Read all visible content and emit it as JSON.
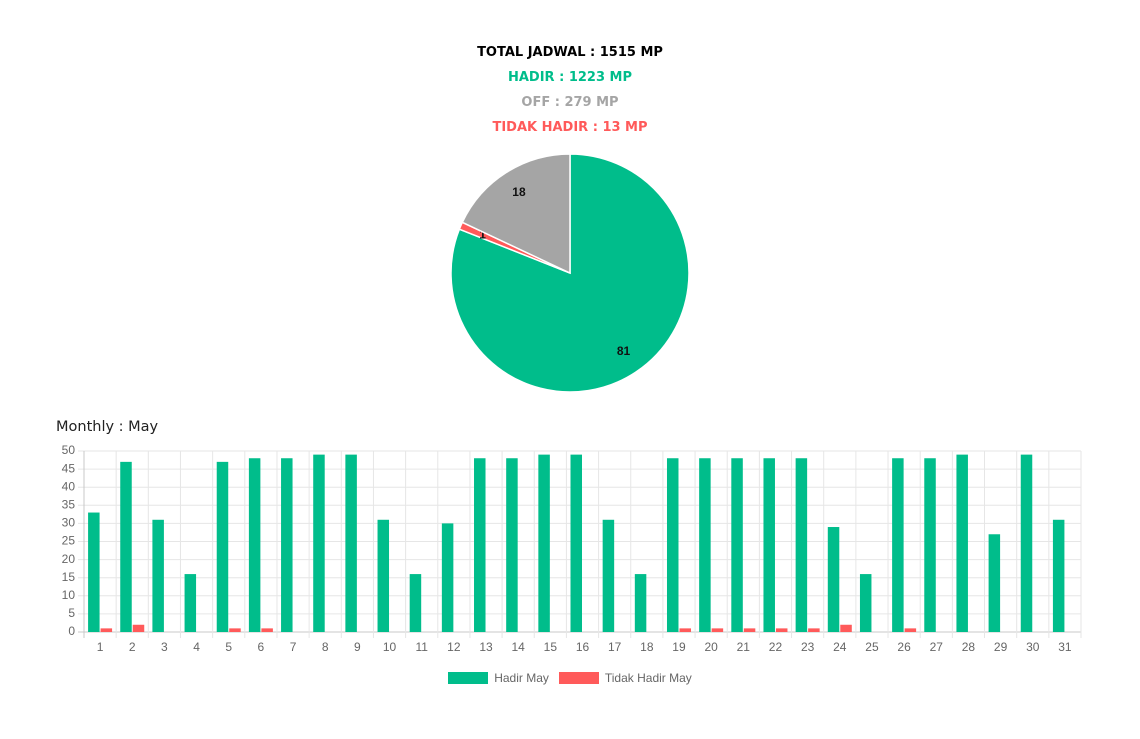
{
  "summary": {
    "total": "TOTAL JADWAL : 1515 MP",
    "hadir": "HADIR : 1223 MP",
    "off": "OFF : 279 MP",
    "tidak_hadir": "TIDAK HADIR : 13 MP"
  },
  "monthly_title": "Monthly : May",
  "colors": {
    "hadir": "#00bd8b",
    "off": "#a5a5a5",
    "tidak_hadir": "#ff5a5a"
  },
  "chart_data": [
    {
      "type": "pie",
      "slices": [
        {
          "label": "81",
          "value": 81,
          "color": "#00bd8b"
        },
        {
          "label": "1",
          "value": 1,
          "color": "#ff5a5a"
        },
        {
          "label": "18",
          "value": 18,
          "color": "#a5a5a5"
        }
      ]
    },
    {
      "type": "bar",
      "categories": [
        "1",
        "2",
        "3",
        "4",
        "5",
        "6",
        "7",
        "8",
        "9",
        "10",
        "11",
        "12",
        "13",
        "14",
        "15",
        "16",
        "17",
        "18",
        "19",
        "20",
        "21",
        "22",
        "23",
        "24",
        "25",
        "26",
        "27",
        "28",
        "29",
        "30",
        "31"
      ],
      "series": [
        {
          "name": "Hadir May",
          "color": "#00bd8b",
          "values": [
            33,
            47,
            31,
            16,
            47,
            48,
            48,
            49,
            49,
            31,
            16,
            30,
            48,
            48,
            49,
            49,
            31,
            16,
            48,
            48,
            48,
            48,
            48,
            29,
            16,
            48,
            48,
            49,
            27,
            49,
            31
          ]
        },
        {
          "name": "Tidak Hadir May",
          "color": "#ff5a5a",
          "values": [
            1,
            2,
            0,
            0,
            1,
            1,
            0,
            0,
            0,
            0,
            0,
            0,
            0,
            0,
            0,
            0,
            0,
            0,
            1,
            1,
            1,
            1,
            1,
            2,
            0,
            1,
            0,
            0,
            0,
            0,
            0
          ]
        }
      ],
      "ylim": [
        0,
        50
      ],
      "yticks": [
        0,
        5,
        10,
        15,
        20,
        25,
        30,
        35,
        40,
        45,
        50
      ],
      "grid": true,
      "legend": "bottom"
    }
  ]
}
